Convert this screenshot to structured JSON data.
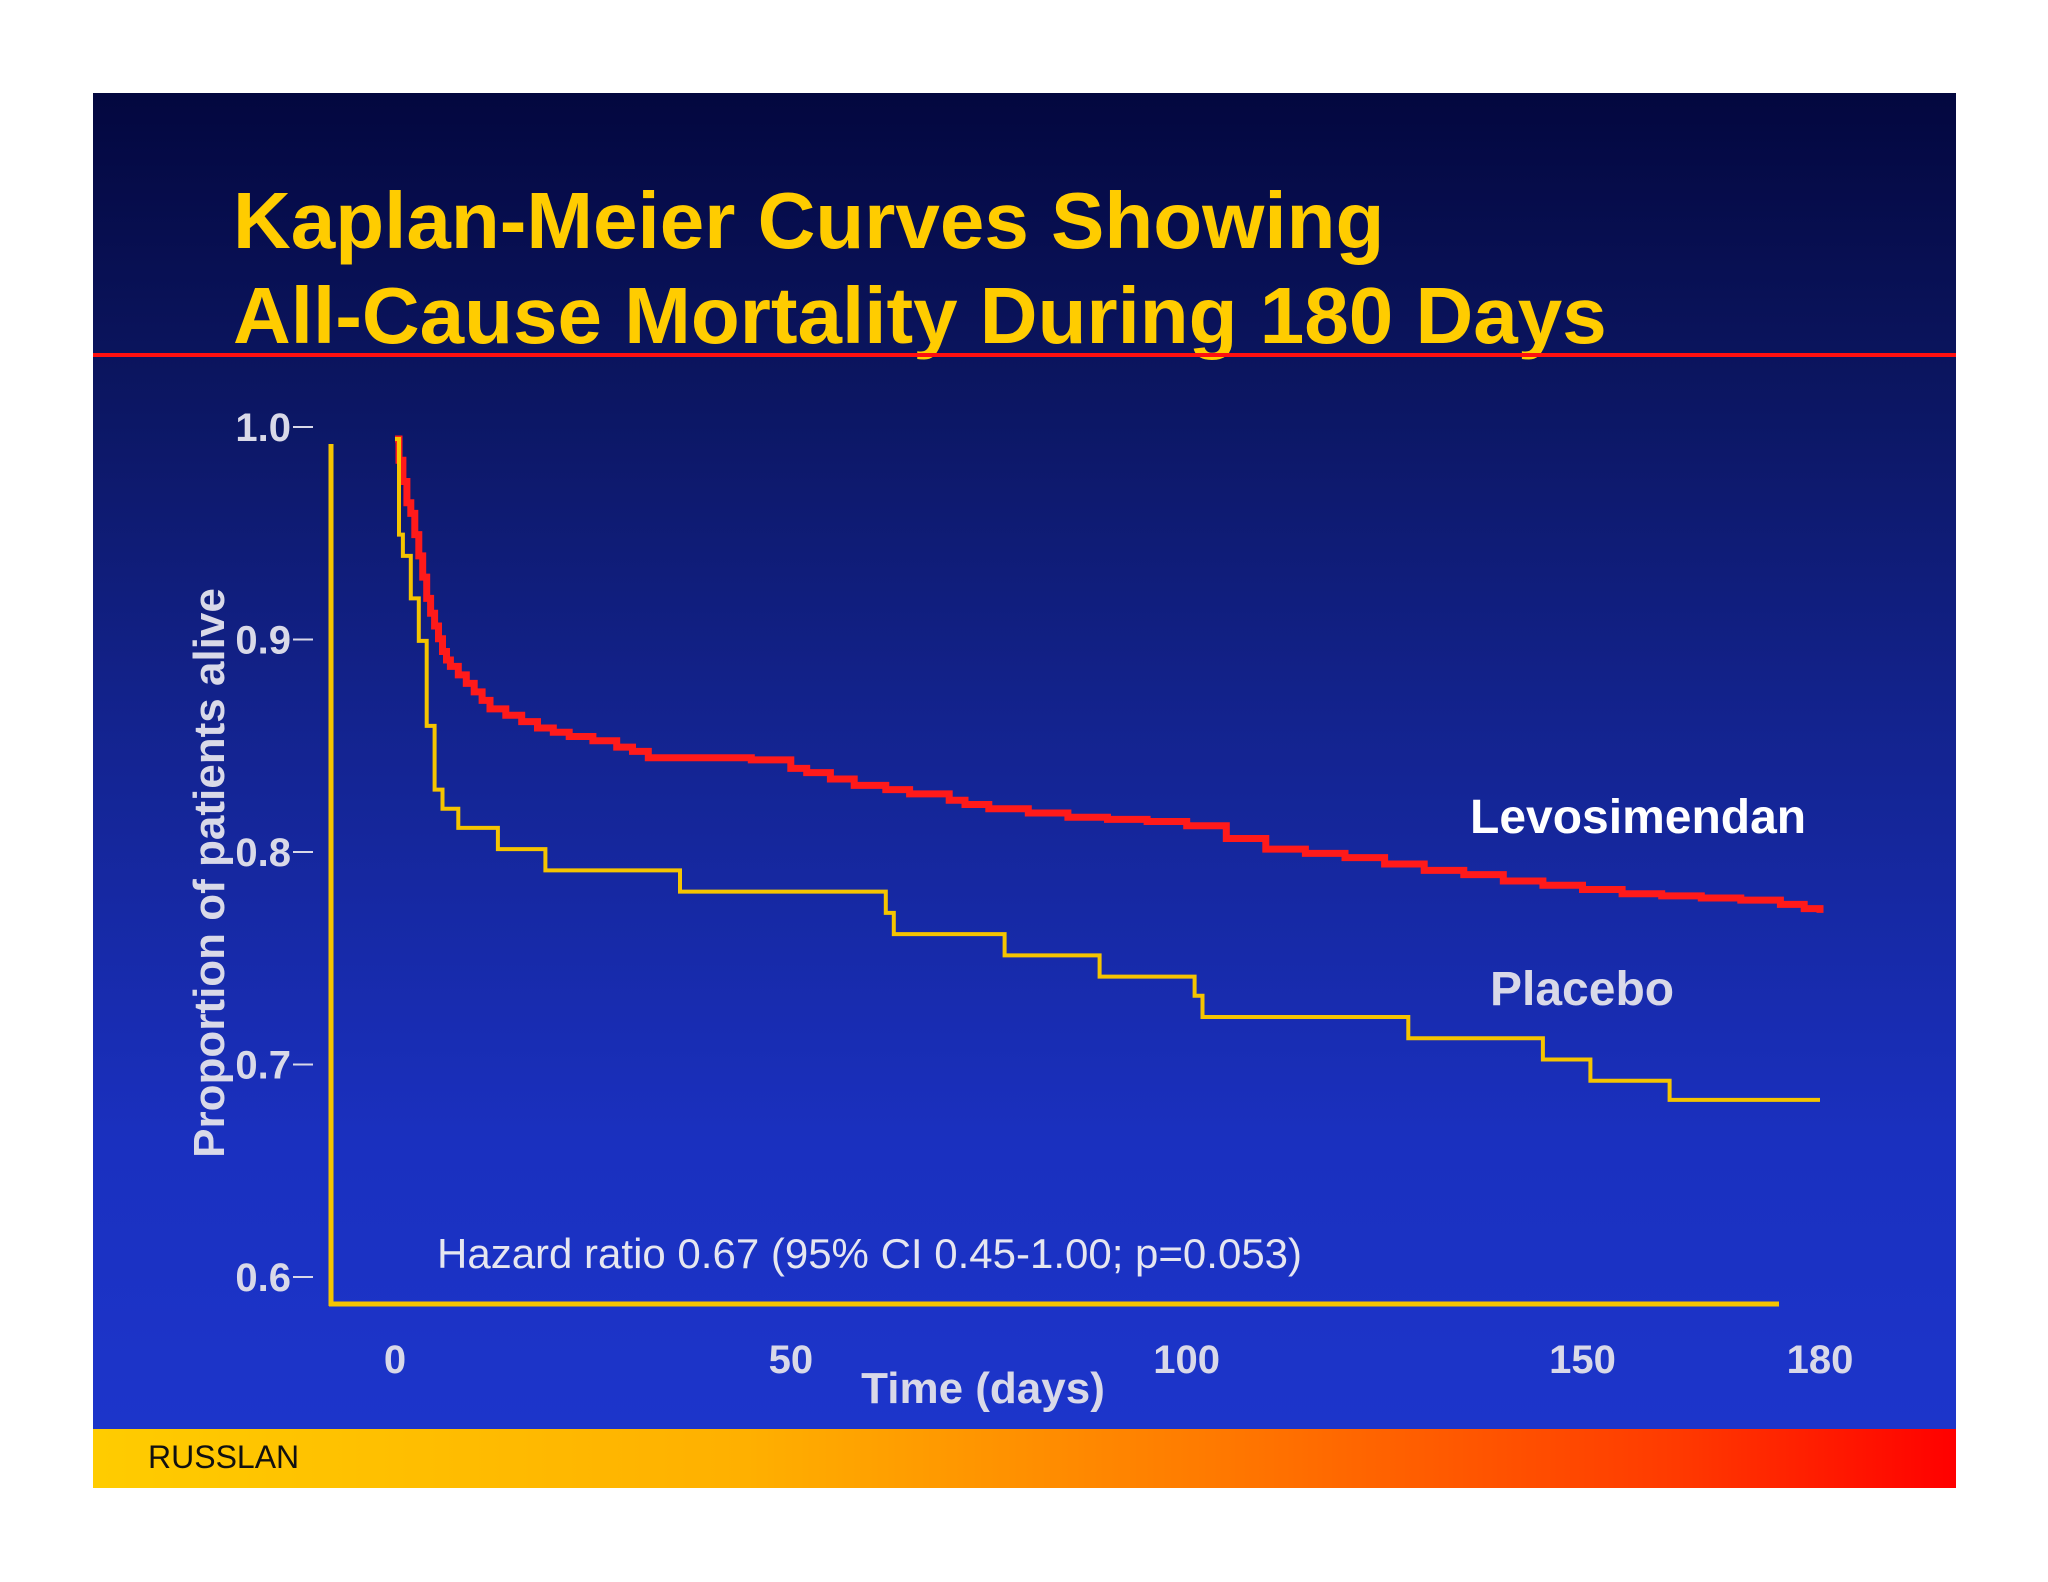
{
  "slide": {
    "title": "Kaplan-Meier Curves Showing\nAll-Cause Mortality During 180 Days",
    "footer": "RUSSLAN",
    "colors": {
      "title": "#ffcc00",
      "rule": "#ff1010",
      "background_top": "#03073f",
      "background_bottom": "#1d36cd"
    }
  },
  "chart_data": {
    "type": "line",
    "title": "Kaplan-Meier Curves Showing All-Cause Mortality During 180 Days",
    "xlabel": "Time (days)",
    "ylabel": "Proportion of patients alive",
    "xlim": [
      0,
      180
    ],
    "ylim": [
      0.6,
      1.0
    ],
    "xticks": [
      0,
      50,
      100,
      150,
      180
    ],
    "xtick_labels": [
      "0",
      "50",
      "100",
      "150",
      "180"
    ],
    "yticks": [
      0.6,
      0.7,
      0.8,
      0.9,
      1.0
    ],
    "ytick_labels": [
      "0.6",
      "0.7",
      "0.8",
      "0.9",
      "1.0"
    ],
    "grid": false,
    "annotation": "Hazard ratio 0.67 (95% CI 0.45-1.00; p=0.053)",
    "series": [
      {
        "name": "Levosimendan",
        "color": "#ff1a1a",
        "step": true,
        "x": [
          0,
          0.5,
          1,
          1.5,
          2,
          2.5,
          3,
          3.5,
          4,
          4.5,
          5,
          5.5,
          6,
          6.5,
          7,
          8,
          9,
          10,
          11,
          12,
          14,
          16,
          18,
          20,
          22,
          25,
          28,
          30,
          32,
          35,
          40,
          45,
          50,
          52,
          55,
          58,
          62,
          65,
          70,
          72,
          75,
          80,
          85,
          90,
          95,
          100,
          105,
          110,
          115,
          120,
          125,
          130,
          135,
          140,
          145,
          150,
          155,
          160,
          165,
          170,
          175,
          178,
          180
        ],
        "y": [
          1.0,
          0.99,
          0.98,
          0.97,
          0.965,
          0.955,
          0.945,
          0.935,
          0.925,
          0.918,
          0.912,
          0.906,
          0.9,
          0.896,
          0.893,
          0.889,
          0.885,
          0.881,
          0.877,
          0.873,
          0.87,
          0.867,
          0.864,
          0.862,
          0.86,
          0.858,
          0.855,
          0.853,
          0.85,
          0.85,
          0.85,
          0.849,
          0.845,
          0.843,
          0.84,
          0.837,
          0.835,
          0.833,
          0.83,
          0.828,
          0.826,
          0.824,
          0.822,
          0.821,
          0.82,
          0.818,
          0.812,
          0.807,
          0.805,
          0.803,
          0.8,
          0.797,
          0.795,
          0.792,
          0.79,
          0.788,
          0.786,
          0.785,
          0.784,
          0.783,
          0.781,
          0.779,
          0.777
        ]
      },
      {
        "name": "Placebo",
        "color": "#f5c400",
        "step": true,
        "x": [
          0,
          0.5,
          1,
          2,
          3,
          4,
          5,
          6,
          8,
          13,
          19,
          36,
          62,
          63,
          77,
          89,
          101,
          102,
          128,
          145,
          151,
          161,
          180
        ],
        "y": [
          1.0,
          0.955,
          0.945,
          0.925,
          0.905,
          0.865,
          0.835,
          0.826,
          0.817,
          0.807,
          0.797,
          0.787,
          0.777,
          0.767,
          0.757,
          0.747,
          0.738,
          0.728,
          0.718,
          0.708,
          0.698,
          0.689,
          0.689
        ]
      }
    ]
  }
}
